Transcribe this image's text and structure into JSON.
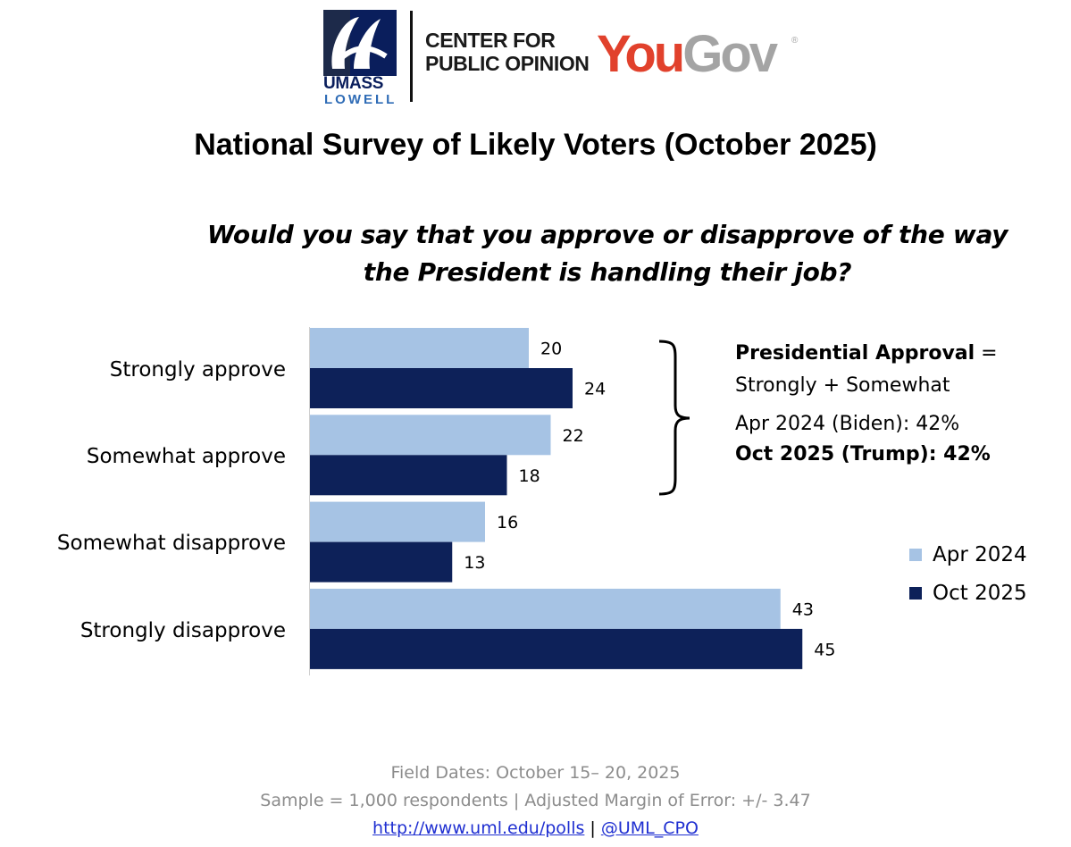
{
  "branding": {
    "umass": "UMASS",
    "lowell": "LOWELL",
    "cpo_line1": "CENTER FOR",
    "cpo_line2": "PUBLIC OPINION",
    "yougov_you": "You",
    "yougov_gov": "Gov",
    "yougov_reg": "®"
  },
  "title": "National Survey of Likely Voters (October 2025)",
  "question_line1": "Would you say that you approve or disapprove of the way",
  "question_line2": "the President is handling their job?",
  "chart_data": {
    "type": "bar",
    "orientation": "horizontal",
    "categories": [
      "Strongly approve",
      "Somewhat approve",
      "Somewhat disapprove",
      "Strongly disapprove"
    ],
    "series": [
      {
        "name": "Apr 2024",
        "values": [
          20,
          22,
          16,
          43
        ],
        "color": "#a6c3e4"
      },
      {
        "name": "Oct 2025",
        "values": [
          24,
          18,
          13,
          45
        ],
        "color": "#0d2159"
      }
    ],
    "legend_position": "right",
    "data_labels": true,
    "grid": false
  },
  "annotation": {
    "title_bold": "Presidential Approval",
    "title_rest": " =",
    "subtitle": "Strongly + Somewhat",
    "apr_line": "Apr 2024 (Biden): 42%",
    "oct_line": "Oct 2025 (Trump): 42%"
  },
  "footer": {
    "dates": "Field Dates: October  15– 20, 2025",
    "sample": "Sample = 1,000 respondents | Adjusted Margin of Error: +/- 3.47",
    "link1": "http://www.uml.edu/polls",
    "separator": " | ",
    "link2": "@UML_CPO"
  }
}
